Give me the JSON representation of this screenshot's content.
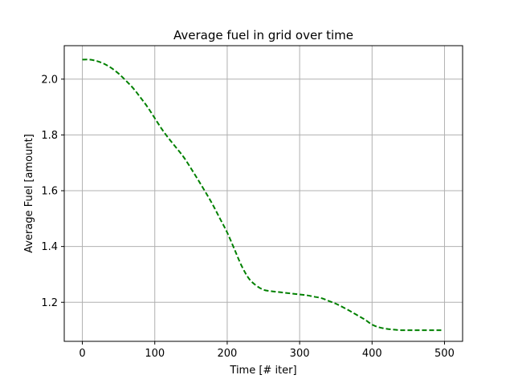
{
  "chart_data": {
    "type": "line",
    "title": "Average fuel in grid over time",
    "xlabel": "Time [# iter]",
    "ylabel": "Average Fuel [amount]",
    "xlim": [
      -25,
      525
    ],
    "ylim": [
      1.06,
      2.12
    ],
    "xticks": [
      0,
      100,
      200,
      300,
      400,
      500
    ],
    "yticks": [
      1.2,
      1.4,
      1.6,
      1.8,
      2.0
    ],
    "xtick_labels": [
      "0",
      "100",
      "200",
      "300",
      "400",
      "500"
    ],
    "ytick_labels": [
      "1.2",
      "1.4",
      "1.6",
      "1.8",
      "2.0"
    ],
    "grid": true,
    "series": [
      {
        "color": "#008000",
        "line_style": "dashed",
        "x": [
          0,
          10,
          20,
          30,
          40,
          50,
          60,
          70,
          80,
          90,
          100,
          110,
          120,
          130,
          140,
          150,
          160,
          170,
          180,
          190,
          200,
          210,
          220,
          230,
          240,
          250,
          260,
          270,
          280,
          290,
          300,
          310,
          320,
          330,
          340,
          350,
          360,
          370,
          380,
          390,
          400,
          410,
          420,
          430,
          440,
          450,
          460,
          470,
          480,
          490,
          497
        ],
        "y": [
          2.07,
          2.07,
          2.065,
          2.055,
          2.04,
          2.02,
          1.995,
          1.968,
          1.935,
          1.9,
          1.86,
          1.82,
          1.785,
          1.753,
          1.72,
          1.68,
          1.638,
          1.595,
          1.55,
          1.5,
          1.45,
          1.39,
          1.33,
          1.285,
          1.26,
          1.245,
          1.24,
          1.237,
          1.234,
          1.231,
          1.228,
          1.225,
          1.22,
          1.215,
          1.205,
          1.195,
          1.182,
          1.168,
          1.153,
          1.138,
          1.12,
          1.11,
          1.105,
          1.102,
          1.1,
          1.1,
          1.1,
          1.1,
          1.1,
          1.1,
          1.1
        ]
      }
    ]
  }
}
